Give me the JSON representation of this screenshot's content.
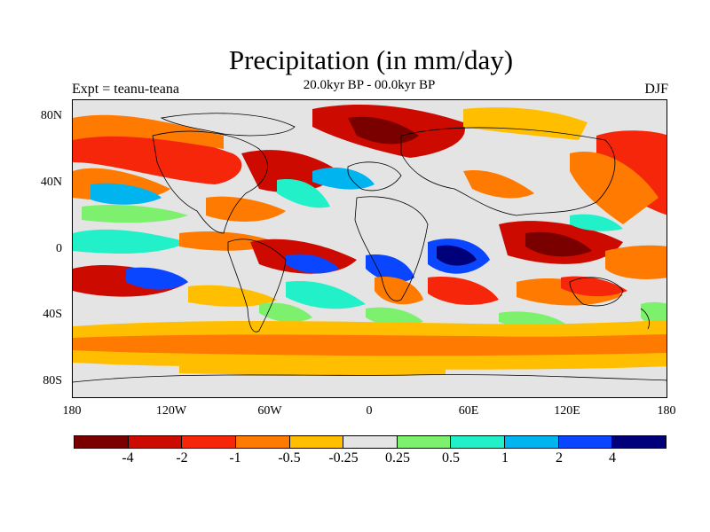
{
  "title": "Precipitation (in mm/day)",
  "subtitle": "20.0kyr BP - 00.0kyr BP",
  "left_label": "Expt = teanu-teana",
  "right_label": "DJF",
  "axes": {
    "y_ticks": [
      "80N",
      "40N",
      "0",
      "40S",
      "80S"
    ],
    "x_ticks": [
      "180",
      "120W",
      "60W",
      "0",
      "60E",
      "120E",
      "180"
    ]
  },
  "colorbar": {
    "colors": [
      "#7a0000",
      "#cc0a00",
      "#f5260a",
      "#ff7a00",
      "#ffbf00",
      "#e4e4e4",
      "#7df06e",
      "#22f0c8",
      "#00b4f0",
      "#0a46ff",
      "#00007a"
    ],
    "labels": [
      "-4",
      "-2",
      "-1",
      "-0.5",
      "-0.25",
      "0.25",
      "0.5",
      "1",
      "2",
      "4"
    ]
  }
}
